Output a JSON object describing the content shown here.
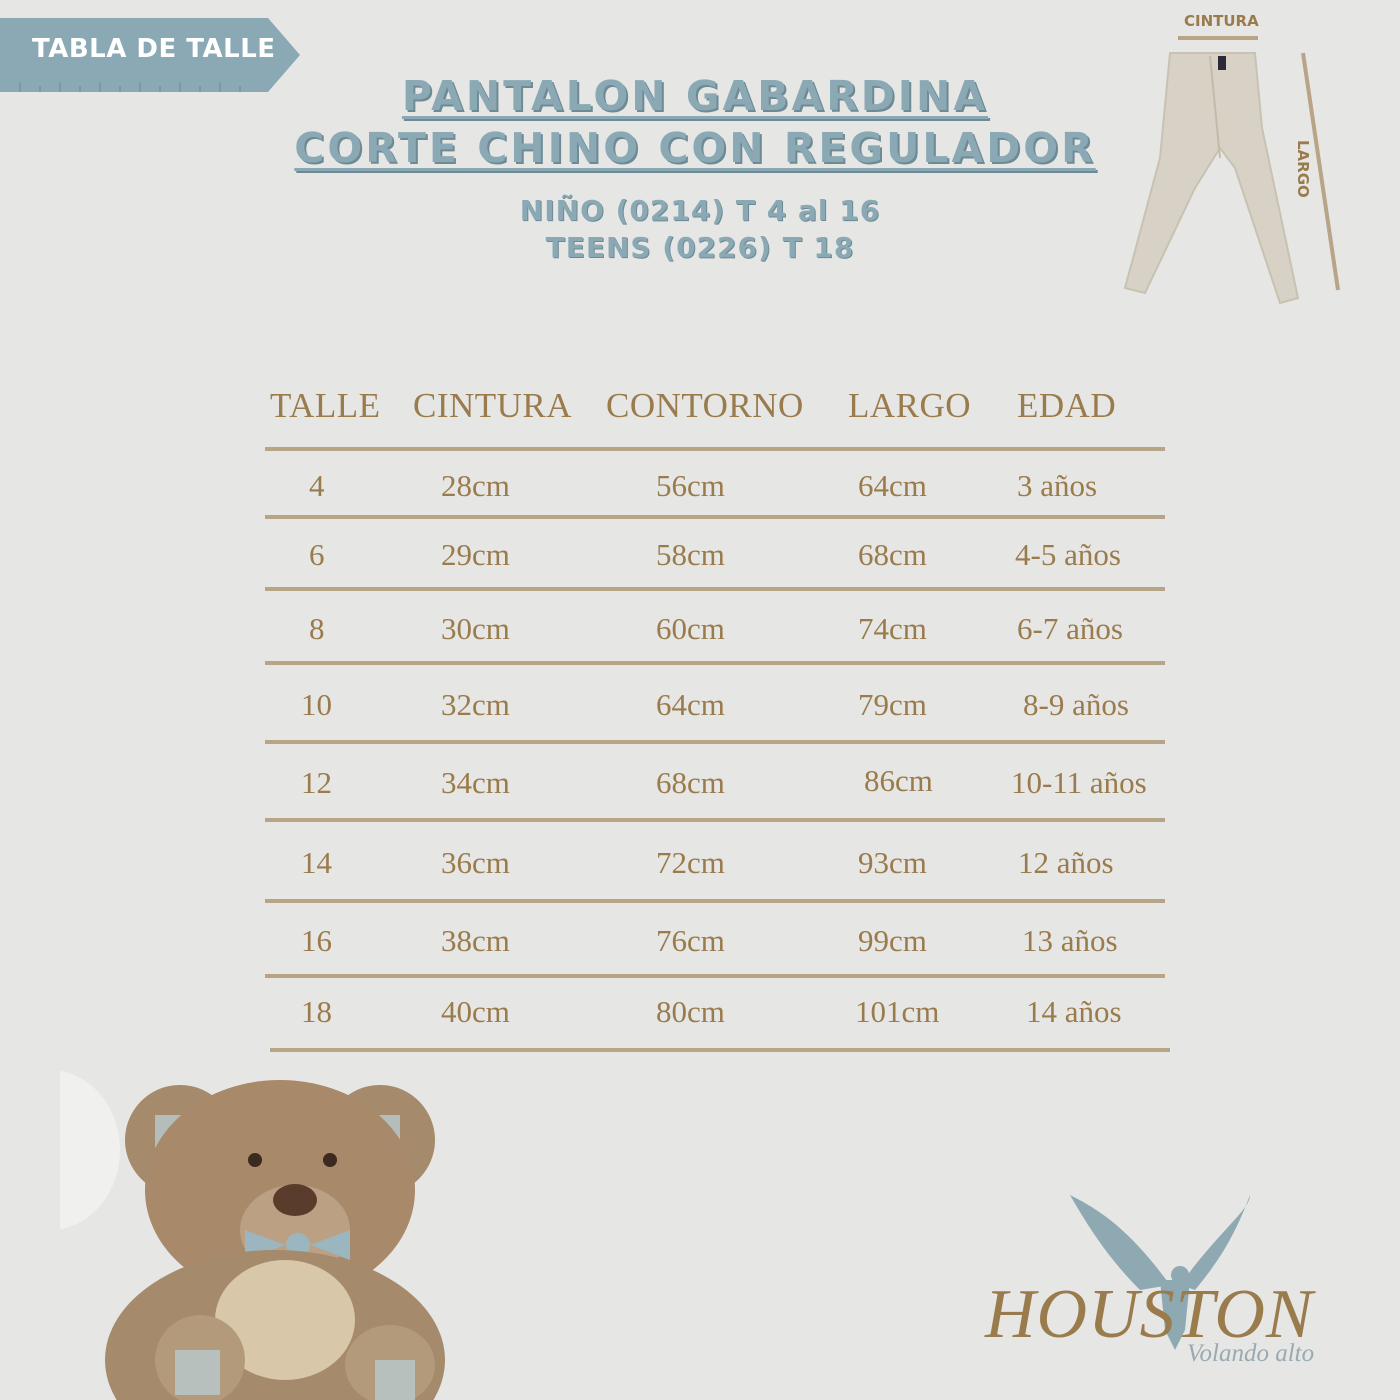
{
  "badge": {
    "label": "TABLA DE TALLE"
  },
  "title": {
    "line1": "PANTALON GABARDINA",
    "line2": "CORTE CHINO CON REGULADOR"
  },
  "subtitle": {
    "line1": "NIÑO (0214) T 4 al 16",
    "line2": "TEENS (0226) T 18"
  },
  "diagram": {
    "waist_label": "CINTURA",
    "length_label": "LARGO"
  },
  "table": {
    "headers": [
      "TALLE",
      "CINTURA",
      "CONTORNO",
      "LARGO",
      "EDAD"
    ],
    "rows": [
      [
        "4",
        "28cm",
        "56cm",
        "64cm",
        "3 años"
      ],
      [
        "6",
        "29cm",
        "58cm",
        "68cm",
        "4-5 años"
      ],
      [
        "8",
        "30cm",
        "60cm",
        "74cm",
        "6-7 años"
      ],
      [
        "10",
        "32cm",
        "64cm",
        "79cm",
        "8-9 años"
      ],
      [
        "12",
        "34cm",
        "68cm",
        "86cm",
        "10-11 años"
      ],
      [
        "14",
        "36cm",
        "72cm",
        "93cm",
        "12 años"
      ],
      [
        "16",
        "38cm",
        "76cm",
        "99cm",
        "13 años"
      ],
      [
        "18",
        "40cm",
        "80cm",
        "101cm",
        "14 años"
      ]
    ]
  },
  "brand": {
    "name": "HOUSTON",
    "tagline": "Volando alto"
  },
  "colors": {
    "background": "#e6e6e5",
    "accent_blue": "#8aa9b4",
    "gold": "#9a7b4c",
    "rule": "#b8a487"
  }
}
